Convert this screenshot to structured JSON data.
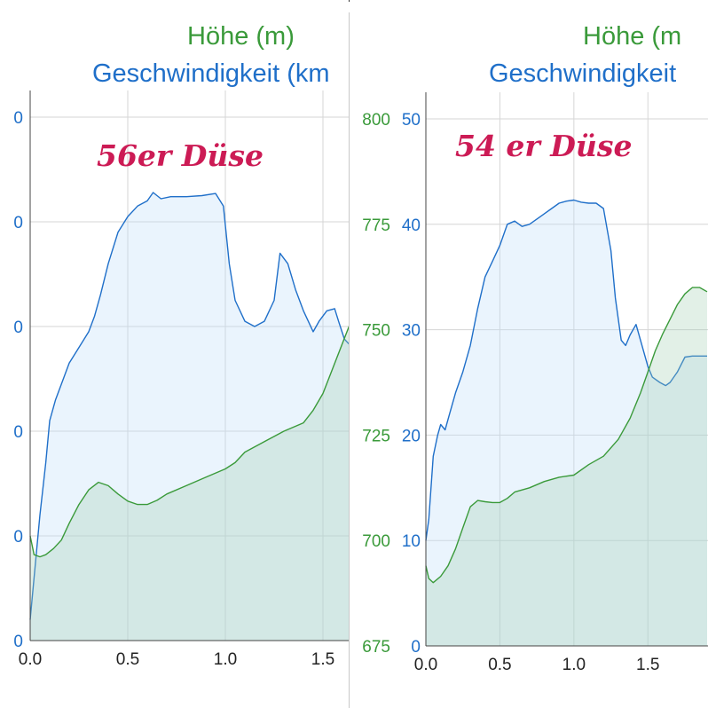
{
  "chart_data": [
    {
      "type": "area",
      "legend": [
        "Höhe (m)",
        "Geschwindigkeit (km"
      ],
      "annotation": "56er Düse",
      "xlim": [
        0.0,
        1.8
      ],
      "x_ticks": [
        "0.0",
        "0.5",
        "1.0",
        "1.5"
      ],
      "speed_ticks": [
        "0",
        "0",
        "0",
        "0",
        "0",
        "0",
        "0"
      ],
      "ylim_speed": [
        0,
        50
      ],
      "ylim_elevation": [
        675,
        800
      ],
      "series": [
        {
          "key": "speed",
          "color": "#1f6fc9",
          "x": [
            0.0,
            0.02,
            0.05,
            0.08,
            0.1,
            0.13,
            0.17,
            0.2,
            0.25,
            0.3,
            0.33,
            0.36,
            0.4,
            0.45,
            0.5,
            0.55,
            0.6,
            0.63,
            0.67,
            0.72,
            0.8,
            0.88,
            0.95,
            0.99,
            1.02,
            1.05,
            1.1,
            1.15,
            1.2,
            1.25,
            1.28,
            1.32,
            1.36,
            1.4,
            1.45,
            1.48,
            1.52,
            1.56,
            1.58,
            1.61,
            1.7,
            1.75,
            1.78,
            1.8
          ],
          "values": [
            2,
            6,
            12,
            17,
            21,
            23,
            25,
            26.5,
            28,
            29.5,
            31,
            33,
            36,
            39,
            40.5,
            41.5,
            42,
            42.8,
            42.2,
            42.4,
            42.4,
            42.5,
            42.7,
            41.5,
            36,
            32.5,
            30.5,
            30,
            30.5,
            32.5,
            37,
            36,
            33.5,
            31.5,
            29.5,
            30.5,
            31.5,
            31.7,
            30.5,
            28.8,
            27,
            26.2,
            25.7,
            25.5
          ]
        },
        {
          "key": "elevation",
          "color": "#3a9a3a",
          "x": [
            0.0,
            0.02,
            0.05,
            0.08,
            0.12,
            0.16,
            0.2,
            0.25,
            0.3,
            0.35,
            0.4,
            0.45,
            0.5,
            0.55,
            0.6,
            0.65,
            0.7,
            0.8,
            0.9,
            1.0,
            1.05,
            1.1,
            1.2,
            1.3,
            1.4,
            1.45,
            1.5,
            1.55,
            1.6,
            1.65,
            1.7,
            1.75,
            1.8
          ],
          "values": [
            700,
            695.5,
            695,
            695.5,
            697,
            699,
            703,
            707.5,
            711,
            712.8,
            712,
            710,
            708.3,
            707.5,
            707.5,
            708.5,
            710,
            712,
            714,
            716,
            717.5,
            720,
            722.5,
            725,
            727,
            730,
            734,
            740,
            746,
            752,
            756,
            760,
            760.5
          ]
        }
      ]
    },
    {
      "type": "area",
      "legend": [
        "Höhe (m",
        "Geschwindigkeit"
      ],
      "annotation": "54 er Düse",
      "xlim": [
        0.0,
        1.9
      ],
      "x_ticks": [
        "0.0",
        "0.5",
        "1.0",
        "1.5"
      ],
      "speed_ticks": [
        "0",
        "10",
        "20",
        "30",
        "40",
        "50"
      ],
      "elevation_ticks": [
        "675",
        "700",
        "725",
        "750",
        "775",
        "800"
      ],
      "ylim_speed": [
        0,
        50
      ],
      "ylim_elevation": [
        675,
        800
      ],
      "series": [
        {
          "key": "speed",
          "color": "#1f6fc9",
          "x": [
            0.0,
            0.02,
            0.05,
            0.08,
            0.1,
            0.13,
            0.16,
            0.2,
            0.25,
            0.3,
            0.35,
            0.4,
            0.45,
            0.5,
            0.55,
            0.6,
            0.65,
            0.7,
            0.75,
            0.8,
            0.85,
            0.9,
            0.95,
            1.0,
            1.05,
            1.1,
            1.15,
            1.2,
            1.25,
            1.28,
            1.32,
            1.35,
            1.38,
            1.42,
            1.46,
            1.5,
            1.53,
            1.58,
            1.62,
            1.65,
            1.7,
            1.75,
            1.8,
            1.85,
            1.9
          ],
          "values": [
            10,
            12,
            18,
            20,
            21,
            20.5,
            22,
            24,
            26,
            28.5,
            32,
            35,
            36.5,
            38,
            40,
            40.3,
            39.8,
            40,
            40.5,
            41,
            41.5,
            42,
            42.2,
            42.3,
            42.1,
            42,
            42,
            41.5,
            37.5,
            33,
            29,
            28.5,
            29.5,
            30.5,
            28.5,
            26.5,
            25.5,
            25,
            24.7,
            25,
            26,
            27.4,
            27.5,
            27.5,
            27.5
          ]
        },
        {
          "key": "elevation",
          "color": "#3a9a3a",
          "x": [
            0.0,
            0.02,
            0.05,
            0.1,
            0.15,
            0.2,
            0.25,
            0.3,
            0.35,
            0.4,
            0.45,
            0.5,
            0.55,
            0.6,
            0.7,
            0.8,
            0.9,
            1.0,
            1.1,
            1.2,
            1.3,
            1.38,
            1.45,
            1.5,
            1.55,
            1.6,
            1.65,
            1.7,
            1.75,
            1.8,
            1.85,
            1.9
          ],
          "values": [
            694,
            691,
            690,
            691.5,
            694,
            698,
            703,
            708,
            709.5,
            709.2,
            709,
            709,
            710,
            711.5,
            712.5,
            714,
            715,
            715.5,
            718,
            720,
            724,
            729,
            735,
            740,
            745,
            749,
            752.5,
            756,
            758.5,
            760,
            760,
            759
          ]
        }
      ]
    }
  ]
}
